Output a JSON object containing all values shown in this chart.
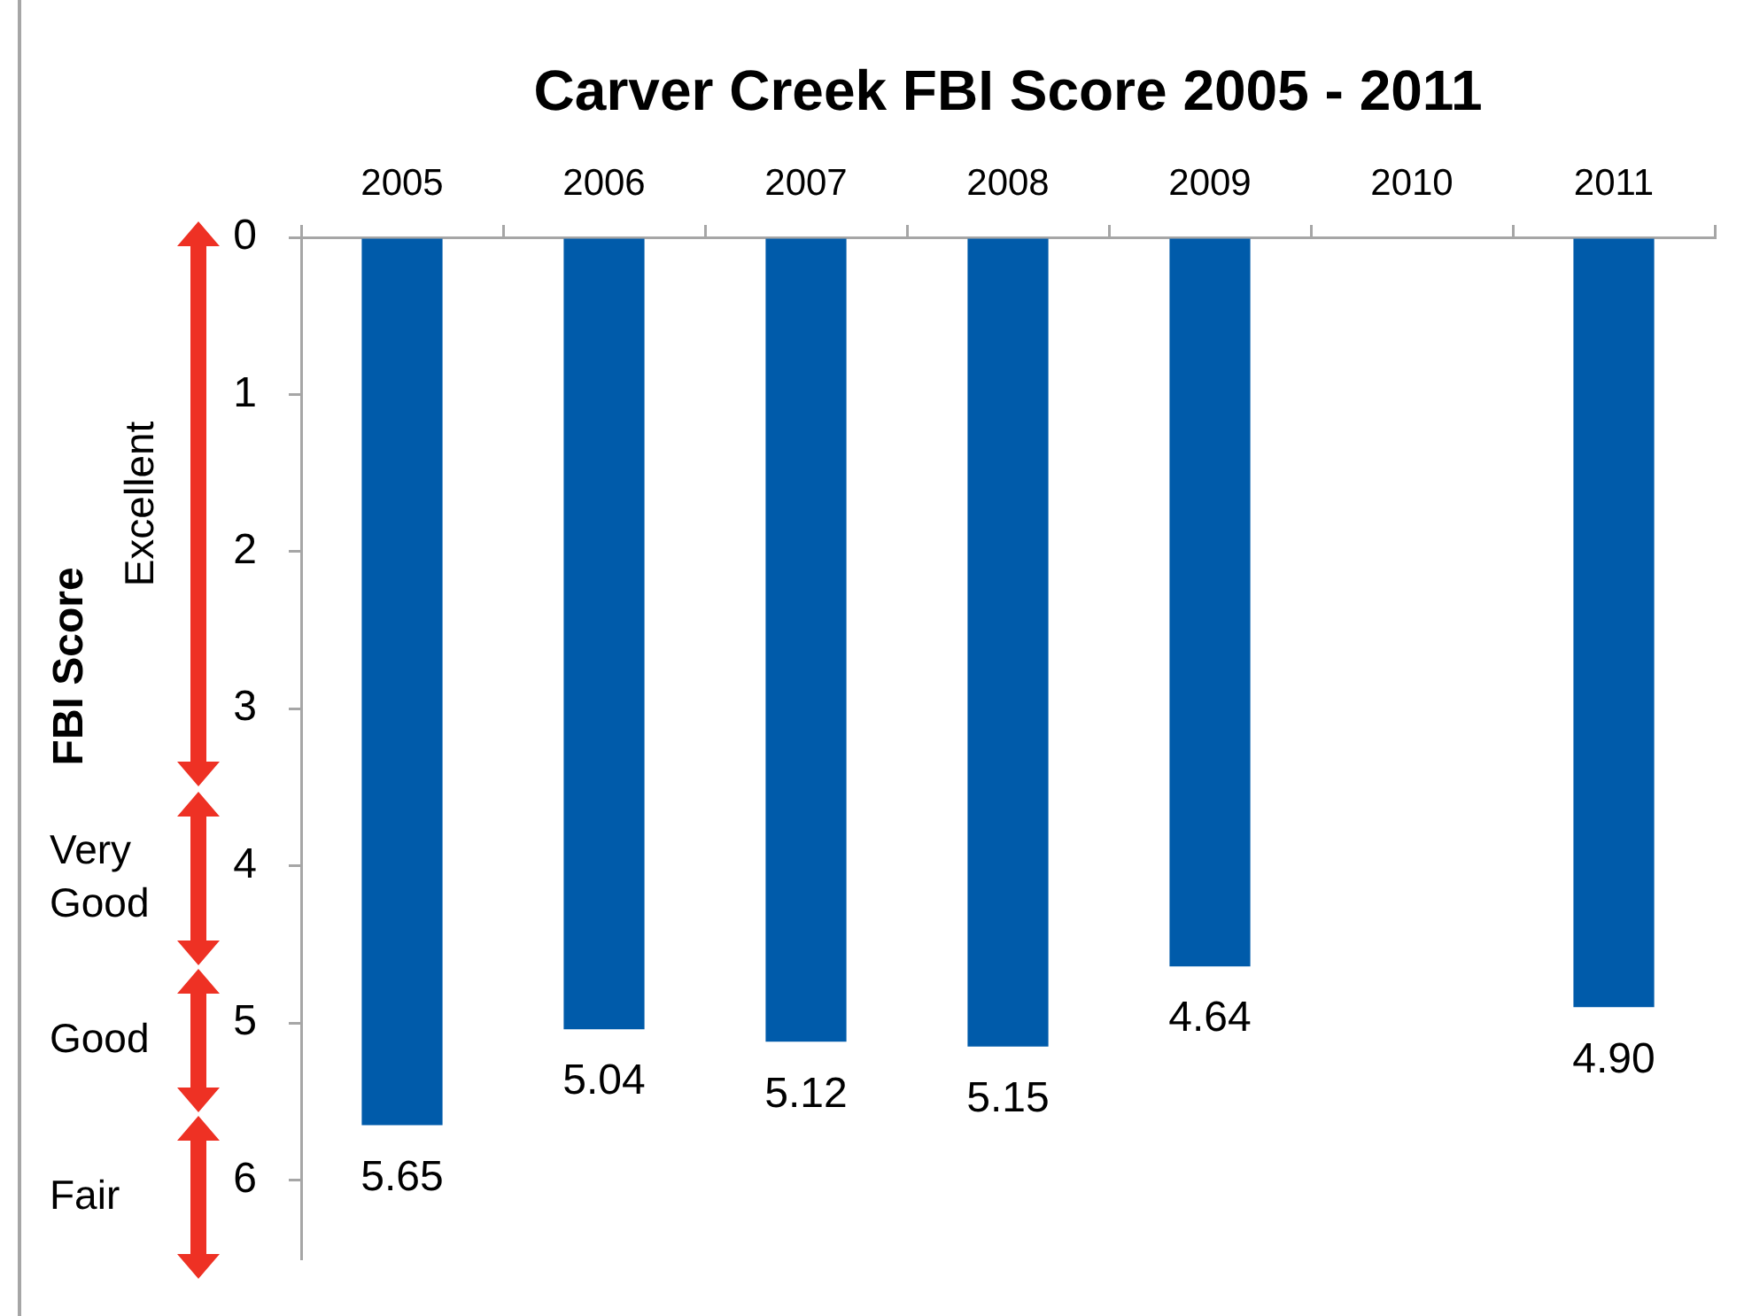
{
  "chart_data": {
    "type": "bar",
    "title": "Carver Creek FBI Score 2005 - 2011",
    "ylabel": "FBI Score",
    "categories": [
      "2005",
      "2006",
      "2007",
      "2008",
      "2009",
      "2010",
      "2011"
    ],
    "values": [
      5.65,
      5.04,
      5.12,
      5.15,
      4.64,
      null,
      4.9
    ],
    "color": "#005baa",
    "value_labels": [
      "5.65",
      "5.04",
      "5.12",
      "5.15",
      "4.64",
      null,
      "4.90"
    ],
    "ylim": [
      6.5,
      0
    ],
    "yticks": [
      0,
      1,
      2,
      3,
      4,
      5,
      6
    ],
    "annotations": [
      "Excellent",
      "Very Good",
      "Good",
      "Fair"
    ]
  }
}
